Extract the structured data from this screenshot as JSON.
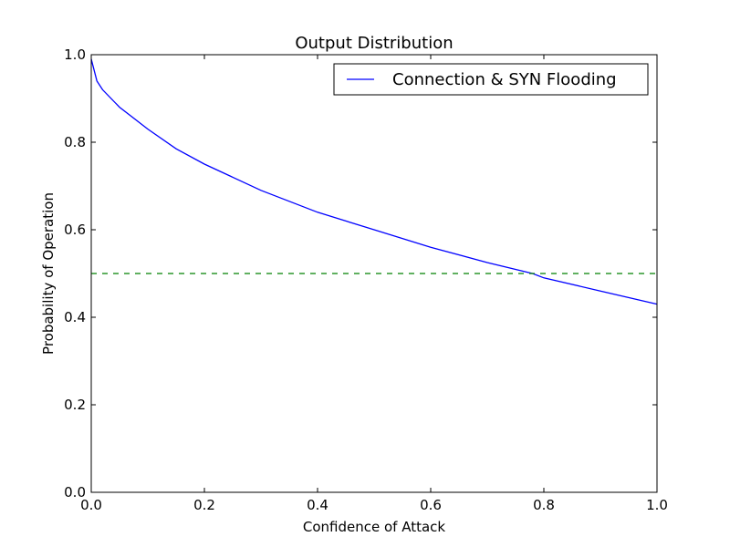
{
  "chart_data": {
    "type": "line",
    "title": "Output Distribution",
    "xlabel": "Confidence of Attack",
    "ylabel": "Probability of Operation",
    "xlim": [
      0.0,
      1.0
    ],
    "ylim": [
      0.0,
      1.0
    ],
    "xticks": [
      "0.0",
      "0.2",
      "0.4",
      "0.6",
      "0.8",
      "1.0"
    ],
    "yticks": [
      "0.0",
      "0.2",
      "0.4",
      "0.6",
      "0.8",
      "1.0"
    ],
    "grid": false,
    "legend_position": "top-right",
    "series": [
      {
        "name": "Connection & SYN Flooding",
        "color": "#0000ff",
        "style": "solid",
        "x": [
          0.0,
          0.01,
          0.02,
          0.05,
          0.1,
          0.15,
          0.2,
          0.3,
          0.4,
          0.5,
          0.6,
          0.7,
          0.78,
          0.8,
          0.9,
          1.0
        ],
        "y": [
          0.99,
          0.94,
          0.92,
          0.88,
          0.83,
          0.785,
          0.75,
          0.69,
          0.64,
          0.6,
          0.56,
          0.525,
          0.5,
          0.49,
          0.46,
          0.43
        ]
      },
      {
        "color": "#008000",
        "style": "dashed",
        "x": [
          0.0,
          1.0
        ],
        "y": [
          0.5,
          0.5
        ]
      }
    ]
  }
}
